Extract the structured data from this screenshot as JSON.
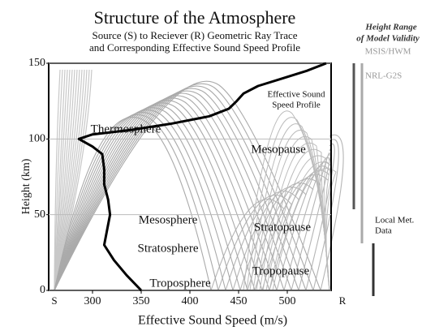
{
  "chart_data": {
    "type": "line",
    "title": "Structure of the Atmosphere",
    "subtitle": [
      "Source (S) to Reciever (R) Geometric Ray Trace",
      "and Corresponding Effective Sound Speed Profile"
    ],
    "x_label": "Effective Sound Speed (m/s)",
    "y_label": "Height (km)",
    "source_label": "S",
    "receiver_label": "R",
    "series": [
      {
        "name": "Effective Sound Speed Profile",
        "color": "#000000",
        "x": [
          350,
          335,
          322,
          312,
          315,
          318,
          316,
          312,
          312,
          310,
          300,
          286,
          300,
          340,
          380,
          420,
          440,
          448,
          455,
          470,
          495,
          520,
          540
        ],
        "values": [
          0,
          10,
          20,
          30,
          40,
          50,
          60,
          70,
          80,
          90,
          95,
          100,
          103,
          106,
          110,
          115,
          120,
          125,
          130,
          135,
          140,
          145,
          150
        ]
      }
    ],
    "xlim": [
      255,
      545
    ],
    "xticks": [
      300,
      350,
      400,
      450,
      500
    ],
    "ylim": [
      0,
      150
    ],
    "yticks": [
      0,
      50,
      100,
      150
    ],
    "grid": true,
    "annotations": [
      "Thermosphere",
      "Mesopause",
      "Mesosphere",
      "Stratopause",
      "Stratosphere",
      "Tropopause",
      "Troposphere"
    ],
    "profile_label": [
      "Effective Sound",
      "Speed Profile"
    ],
    "validity_title": [
      "Height Range",
      "of Model Validity"
    ],
    "validity_labels": [
      "MSIS/HWM",
      "NRL-G2S",
      "Local Met.",
      "Data"
    ]
  }
}
